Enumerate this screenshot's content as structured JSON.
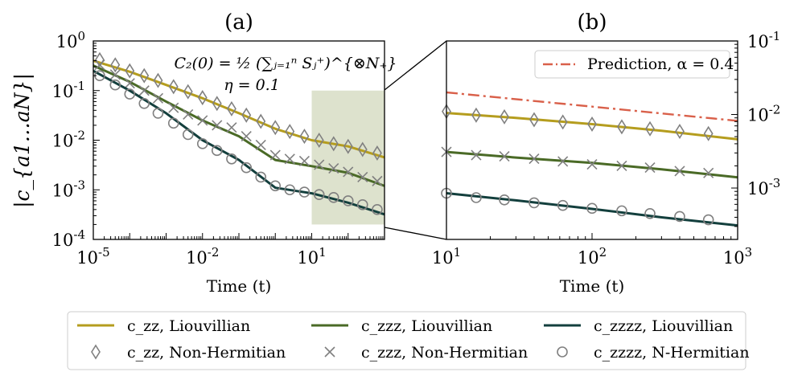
{
  "figure": {
    "ylabel": "|c_{a1…aN}|",
    "legend": [
      {
        "label": "c_zz, Liouvillian",
        "kind": "line",
        "series": "zz"
      },
      {
        "label": "c_zz, Non-Hermitian",
        "kind": "marker",
        "series": "zz"
      },
      {
        "label": "c_zzz, Liouvillian",
        "kind": "line",
        "series": "zzz"
      },
      {
        "label": "c_zzz, Non-Hermitian",
        "kind": "marker",
        "series": "zzz"
      },
      {
        "label": "c_zzzz, Liouvillian",
        "kind": "line",
        "series": "zzzz"
      },
      {
        "label": "c_zzzz, N-Hermitian",
        "kind": "marker",
        "series": "zzzz"
      }
    ]
  },
  "colors": {
    "zz": "#b59d1e",
    "zzz": "#4a6a26",
    "zzzz": "#133f3d",
    "marker": "#808080",
    "prediction": "#d9604a",
    "highlight": "#dde2cd"
  },
  "chart_data": [
    {
      "panel": "(a)",
      "type": "line",
      "xscale": "log",
      "yscale": "log",
      "xlabel": "Time (t)",
      "ylabel": "|c_{a1…aN}|",
      "xlim": [
        1e-05,
        1000
      ],
      "ylim": [
        0.0001,
        1
      ],
      "xticks": [
        {
          "value": 1e-05,
          "label": "10^{-5}"
        },
        {
          "value": 0.01,
          "label": "10^{-2}"
        },
        {
          "value": 10,
          "label": "10^{1}"
        }
      ],
      "yticks": [
        {
          "value": 1,
          "label": "10^{0}"
        },
        {
          "value": 0.1,
          "label": "10^{-1}"
        },
        {
          "value": 0.01,
          "label": "10^{-2}"
        },
        {
          "value": 0.001,
          "label": "10^{-3}"
        },
        {
          "value": 0.0001,
          "label": "10^{-4}"
        }
      ],
      "annotation": {
        "line1": "C₂(0) = ½ (∑ⱼ₌₁ⁿ Sⱼ⁺)^{⊗N₊}",
        "line2": "η = 0.1"
      },
      "highlight_region": {
        "x": [
          10,
          1000
        ],
        "y": [
          0.0002,
          0.1
        ]
      },
      "series": [
        {
          "name": "c_zz, Liouvillian",
          "color_key": "zz",
          "x": [
            1e-05,
            0.0001,
            0.001,
            0.01,
            0.1,
            1,
            10,
            100,
            1000
          ],
          "y": [
            0.4,
            0.24,
            0.13,
            0.07,
            0.035,
            0.017,
            0.01,
            0.0075,
            0.0045
          ]
        },
        {
          "name": "c_zz, Non-Hermitian",
          "color_key": "zz",
          "marker": "diamond",
          "x": [
            1.5e-05,
            4e-05,
            0.0001,
            0.00025,
            0.0006,
            0.0016,
            0.004,
            0.01,
            0.025,
            0.063,
            0.16,
            0.4,
            1,
            2.5,
            6.3,
            16,
            40,
            100,
            250,
            630
          ],
          "y": [
            0.42,
            0.33,
            0.25,
            0.2,
            0.16,
            0.12,
            0.095,
            0.072,
            0.055,
            0.043,
            0.032,
            0.024,
            0.018,
            0.015,
            0.012,
            0.01,
            0.0085,
            0.0075,
            0.0065,
            0.0055
          ]
        },
        {
          "name": "c_zzz, Liouvillian",
          "color_key": "zzz",
          "x": [
            1e-05,
            0.0001,
            0.001,
            0.01,
            0.1,
            1,
            10,
            100,
            1000
          ],
          "y": [
            0.32,
            0.15,
            0.06,
            0.025,
            0.012,
            0.004,
            0.003,
            0.0022,
            0.0012
          ]
        },
        {
          "name": "c_zzz, Non-Hermitian",
          "color_key": "zzz",
          "marker": "x",
          "x": [
            1.5e-05,
            4e-05,
            0.0001,
            0.00025,
            0.0006,
            0.0016,
            0.004,
            0.01,
            0.025,
            0.063,
            0.16,
            0.4,
            1,
            2.5,
            6.3,
            16,
            40,
            100,
            250,
            630
          ],
          "y": [
            0.33,
            0.21,
            0.14,
            0.1,
            0.07,
            0.045,
            0.033,
            0.025,
            0.02,
            0.018,
            0.012,
            0.008,
            0.005,
            0.0042,
            0.0038,
            0.0032,
            0.0027,
            0.0023,
            0.0018,
            0.0015
          ]
        },
        {
          "name": "c_zzzz, Liouvillian",
          "color_key": "zzzz",
          "x": [
            1e-05,
            0.0001,
            0.001,
            0.01,
            0.1,
            1,
            10,
            100,
            1000
          ],
          "y": [
            0.25,
            0.1,
            0.035,
            0.01,
            0.004,
            0.0011,
            0.00085,
            0.00055,
            0.00032
          ]
        },
        {
          "name": "c_zzzz, N-Hermitian",
          "color_key": "zzzz",
          "marker": "circle",
          "x": [
            1.5e-05,
            4e-05,
            0.0001,
            0.00025,
            0.0006,
            0.0016,
            0.004,
            0.01,
            0.025,
            0.063,
            0.16,
            0.4,
            1,
            2.5,
            6.3,
            16,
            40,
            100,
            250,
            630
          ],
          "y": [
            0.2,
            0.13,
            0.085,
            0.055,
            0.035,
            0.022,
            0.013,
            0.0085,
            0.0062,
            0.0042,
            0.0028,
            0.0018,
            0.0012,
            0.001,
            0.0009,
            0.0008,
            0.0007,
            0.0006,
            0.0005,
            0.0004
          ]
        }
      ]
    },
    {
      "panel": "(b)",
      "type": "line",
      "xscale": "log",
      "yscale": "log",
      "xlabel": "Time (t)",
      "xlim": [
        10,
        1000
      ],
      "ylim": [
        0.0002,
        0.1
      ],
      "xticks": [
        {
          "value": 10,
          "label": "10^{1}"
        },
        {
          "value": 100,
          "label": "10^{2}"
        },
        {
          "value": 1000,
          "label": "10^{3}"
        }
      ],
      "yticks": [
        {
          "value": 0.1,
          "label": "10^{-1}"
        },
        {
          "value": 0.01,
          "label": "10^{-2}"
        },
        {
          "value": 0.001,
          "label": "10^{-3}"
        }
      ],
      "yaxis_side": "right",
      "legend": {
        "label": "Prediction, α = 0.4",
        "position": "top-right"
      },
      "series": [
        {
          "name": "Prediction, α = 0.4",
          "color_key": "prediction",
          "dash": "dashdot",
          "x": [
            10,
            1000
          ],
          "y": [
            0.02,
            0.0082
          ]
        },
        {
          "name": "c_zz, Liouvillian",
          "color_key": "zz",
          "x": [
            10,
            30,
            100,
            300,
            1000
          ],
          "y": [
            0.0105,
            0.009,
            0.0074,
            0.006,
            0.0046
          ]
        },
        {
          "name": "c_zz, Non-Hermitian",
          "color_key": "zz",
          "marker": "diamond",
          "x": [
            10,
            16,
            25,
            40,
            63,
            100,
            160,
            250,
            400,
            630
          ],
          "y": [
            0.011,
            0.0098,
            0.0093,
            0.0085,
            0.0079,
            0.0074,
            0.0068,
            0.0064,
            0.0059,
            0.0055
          ]
        },
        {
          "name": "c_zzz, Liouvillian",
          "color_key": "zzz",
          "x": [
            10,
            30,
            100,
            300,
            1000
          ],
          "y": [
            0.0031,
            0.0026,
            0.0022,
            0.0018,
            0.0014
          ]
        },
        {
          "name": "c_zzz, Non-Hermitian",
          "color_key": "zzz",
          "marker": "x",
          "x": [
            10,
            16,
            25,
            40,
            63,
            100,
            160,
            250,
            400,
            630
          ],
          "y": [
            0.0031,
            0.0028,
            0.0027,
            0.0025,
            0.0023,
            0.0021,
            0.002,
            0.0019,
            0.0017,
            0.0016
          ]
        },
        {
          "name": "c_zzzz, Liouvillian",
          "color_key": "zzzz",
          "x": [
            10,
            30,
            100,
            300,
            1000
          ],
          "y": [
            0.00085,
            0.00068,
            0.00052,
            0.0004,
            0.00031
          ]
        },
        {
          "name": "c_zzzz, N-Hermitian",
          "color_key": "zzzz",
          "marker": "circle",
          "x": [
            10,
            16,
            25,
            40,
            63,
            100,
            160,
            250,
            400,
            630
          ],
          "y": [
            0.00085,
            0.00074,
            0.00069,
            0.00063,
            0.00058,
            0.00053,
            0.00049,
            0.00045,
            0.00041,
            0.00037
          ]
        }
      ]
    }
  ]
}
